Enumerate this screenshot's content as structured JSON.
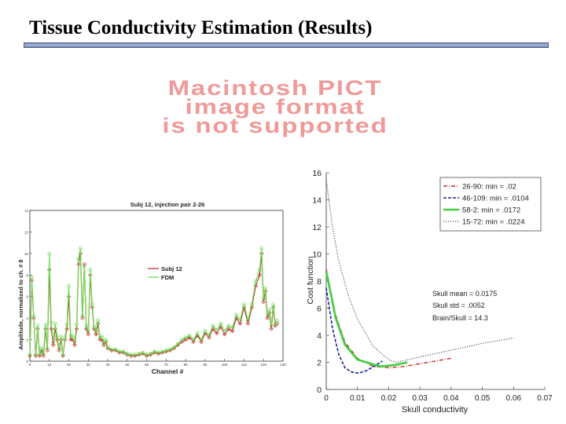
{
  "slide": {
    "title": "Tissue Conductivity Estimation (Results)",
    "pict_placeholder": [
      "Macintosh PICT",
      "image format",
      "is not supported"
    ]
  },
  "colors": {
    "title_rule": "#7d8fb8",
    "pict_text": "#ee9a98",
    "subj": "#c0312b",
    "fdm": "#6ede5a"
  },
  "chart_data": [
    {
      "type": "line",
      "title": "Subj 12, injection pair 2-26",
      "xlabel": "Channel #",
      "ylabel": "Amplitude, normalized to ch. # 8",
      "xlim": [
        0,
        130
      ],
      "ylim": [
        0,
        14
      ],
      "xticks": [
        0,
        10,
        20,
        30,
        40,
        50,
        60,
        70,
        80,
        90,
        100,
        110,
        120,
        130
      ],
      "yticks": [
        0,
        2,
        4,
        6,
        8,
        10,
        12,
        14
      ],
      "legend": "upper-center",
      "series": [
        {
          "name": "Subj 12",
          "color": "#c0312b",
          "marker": "diamond",
          "x": [
            0,
            1,
            2,
            3,
            4,
            5,
            6,
            7,
            8,
            9,
            10,
            11,
            12,
            13,
            14,
            15,
            16,
            17,
            18,
            19,
            20,
            21,
            22,
            23,
            24,
            25,
            26,
            27,
            28,
            29,
            30,
            31,
            32,
            33,
            34,
            35,
            36,
            37,
            38,
            39,
            40,
            42,
            44,
            46,
            48,
            50,
            52,
            54,
            56,
            58,
            60,
            62,
            64,
            66,
            68,
            70,
            72,
            74,
            76,
            78,
            80,
            82,
            84,
            86,
            88,
            90,
            92,
            94,
            96,
            98,
            100,
            102,
            104,
            106,
            108,
            110,
            112,
            114,
            116,
            118,
            119,
            120,
            121,
            122,
            123,
            124,
            125,
            126,
            127
          ],
          "y": [
            0.5,
            7.5,
            4,
            0.5,
            3,
            0.5,
            1,
            0.5,
            3,
            1,
            8.5,
            3,
            1.5,
            3,
            2,
            1,
            2,
            0.5,
            2,
            3,
            6,
            2,
            2,
            1.5,
            3,
            9,
            10,
            4,
            9,
            3,
            2.5,
            8,
            5,
            3,
            2.5,
            3.5,
            2,
            2,
            1.5,
            1.8,
            1.2,
            1,
            1,
            0.8,
            0.8,
            0.6,
            0.5,
            0.5,
            0.6,
            0.7,
            0.5,
            0.6,
            0.8,
            0.7,
            0.8,
            0.9,
            1,
            1.2,
            1.5,
            1.8,
            2,
            2.2,
            1.8,
            2.4,
            1.8,
            2.6,
            2.2,
            3,
            2.6,
            3.2,
            2.5,
            3,
            2.8,
            4,
            3.5,
            5,
            3.5,
            5,
            7,
            8,
            10,
            5.5,
            6.5,
            4,
            4.5,
            3,
            5,
            3.3,
            3.5
          ]
        },
        {
          "name": "FDM",
          "color": "#6ede5a",
          "marker": "circle",
          "x": [
            0,
            1,
            2,
            3,
            4,
            5,
            6,
            7,
            8,
            9,
            10,
            11,
            12,
            13,
            14,
            15,
            16,
            17,
            18,
            19,
            20,
            21,
            22,
            23,
            24,
            25,
            26,
            27,
            28,
            29,
            30,
            31,
            32,
            33,
            34,
            35,
            36,
            37,
            38,
            39,
            40,
            42,
            44,
            46,
            48,
            50,
            52,
            54,
            56,
            58,
            60,
            62,
            64,
            66,
            68,
            70,
            72,
            74,
            76,
            78,
            80,
            82,
            84,
            86,
            88,
            90,
            92,
            94,
            96,
            98,
            100,
            102,
            104,
            106,
            108,
            110,
            112,
            114,
            116,
            118,
            119,
            120,
            121,
            122,
            123,
            124,
            125,
            126,
            127
          ],
          "y": [
            0.6,
            7.8,
            4.2,
            0.6,
            3.3,
            0.6,
            1.2,
            0.7,
            3.4,
            1.2,
            10,
            3.6,
            1.8,
            3.5,
            2.3,
            1.2,
            2.3,
            0.6,
            2.2,
            3.4,
            7,
            2.4,
            2.3,
            1.8,
            3.4,
            9.5,
            10.5,
            4.2,
            8.8,
            3.3,
            2.8,
            8.5,
            5.3,
            3.2,
            2.8,
            3.8,
            2.2,
            2.3,
            1.7,
            2,
            1.3,
            1.1,
            1.1,
            0.9,
            0.9,
            0.7,
            0.6,
            0.6,
            0.7,
            0.8,
            0.6,
            0.7,
            0.9,
            0.8,
            0.9,
            1,
            1.1,
            1.3,
            1.6,
            2,
            2.2,
            2.4,
            2,
            2.6,
            2,
            2.8,
            2.4,
            3.3,
            2.9,
            3.5,
            2.8,
            3.3,
            3.1,
            4.3,
            3.8,
            5.3,
            3.8,
            5.3,
            7.4,
            8.5,
            10.5,
            5.8,
            6.8,
            4.3,
            4.8,
            3.3,
            5.3,
            3.5,
            3.8
          ]
        }
      ]
    },
    {
      "type": "line",
      "title": "",
      "xlabel": "Skull conductivity",
      "ylabel": "Cost function",
      "xlim": [
        0,
        0.07
      ],
      "ylim": [
        0,
        16
      ],
      "xticks": [
        "0",
        "0.01",
        "0.02",
        "0.03",
        "0.04",
        "0.05",
        "0.06",
        "0.07"
      ],
      "yticks": [
        "0",
        "2",
        "4",
        "6",
        "8",
        "10",
        "12",
        "14",
        "16"
      ],
      "legend": "top-right",
      "series": [
        {
          "name": "26-90: min = .02",
          "color": "#cc2a2a",
          "dash": "dashdot",
          "x": [
            0,
            0.003,
            0.006,
            0.01,
            0.015,
            0.02,
            0.025,
            0.03,
            0.035,
            0.04
          ],
          "y": [
            8.9,
            5.5,
            3.5,
            2.3,
            1.7,
            1.6,
            1.7,
            1.9,
            2.1,
            2.3
          ]
        },
        {
          "name": "46-109: min = .0104",
          "color": "#1a1f9a",
          "dash": "dashed",
          "x": [
            0,
            0.002,
            0.004,
            0.006,
            0.008,
            0.0104,
            0.013,
            0.016,
            0.018
          ],
          "y": [
            7.5,
            4.5,
            2.6,
            1.6,
            1.3,
            1.2,
            1.4,
            1.8,
            2.1
          ]
        },
        {
          "name": "58-2: min = .0172",
          "color": "#3fcf3f",
          "dash": "solid",
          "x": [
            0,
            0.003,
            0.006,
            0.01,
            0.0172,
            0.022,
            0.026
          ],
          "y": [
            8.7,
            5.3,
            3.3,
            2.2,
            1.7,
            1.8,
            2
          ]
        },
        {
          "name": "15-72: min = .0224",
          "color": "#555555",
          "dash": "dotted",
          "x": [
            0,
            0.002,
            0.004,
            0.007,
            0.01,
            0.015,
            0.02,
            0.0224,
            0.03,
            0.04,
            0.05,
            0.06
          ],
          "y": [
            15.5,
            12,
            9.5,
            7,
            5.2,
            3.2,
            2.2,
            2,
            2.4,
            2.9,
            3.4,
            3.8
          ]
        }
      ],
      "annotations": [
        "Skull mean = 0.0175",
        "Skull std = .0052",
        "Brain/Skull = 14.3"
      ]
    }
  ]
}
